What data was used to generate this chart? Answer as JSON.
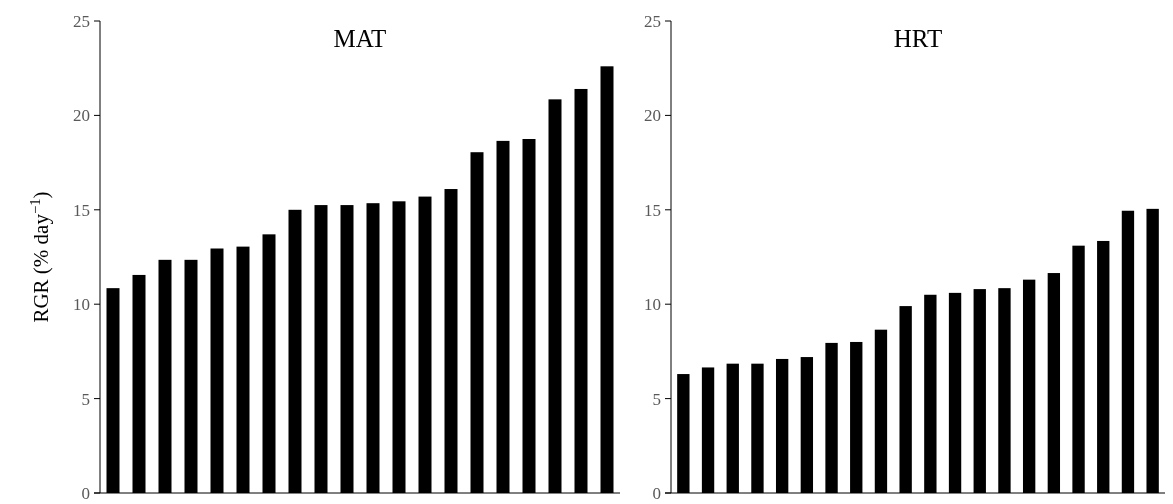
{
  "chart_data": [
    {
      "type": "bar",
      "title": "MAT",
      "ylabel": "RGR (% day$^{−1}$)",
      "categories": [
        null,
        null,
        null,
        null,
        null,
        null,
        null,
        null,
        null,
        null,
        null,
        null,
        null,
        null,
        null,
        null,
        null,
        null,
        null,
        null
      ],
      "color": "#000000",
      "ylim": [
        0,
        25
      ],
      "yticks": [
        0,
        5,
        10,
        15,
        20,
        25
      ],
      "grid": false,
      "values": [
        10.85,
        11.55,
        12.35,
        12.35,
        12.95,
        13.05,
        13.7,
        15.0,
        15.25,
        15.25,
        15.35,
        15.45,
        15.7,
        16.1,
        18.05,
        18.65,
        18.75,
        20.85,
        21.4,
        22.6
      ]
    },
    {
      "type": "bar",
      "title": "HRT",
      "categories": [
        null,
        null,
        null,
        null,
        null,
        null,
        null,
        null,
        null,
        null,
        null,
        null,
        null,
        null,
        null,
        null,
        null,
        null,
        null,
        null
      ],
      "color": "#000000",
      "ylim": [
        0,
        25
      ],
      "yticks": [
        0,
        5,
        10,
        15,
        20,
        25
      ],
      "grid": false,
      "values": [
        6.3,
        6.65,
        6.85,
        6.85,
        7.1,
        7.2,
        7.95,
        8.0,
        8.65,
        9.9,
        10.5,
        10.6,
        10.8,
        10.85,
        11.3,
        11.65,
        13.1,
        13.35,
        14.95,
        15.05
      ]
    }
  ]
}
